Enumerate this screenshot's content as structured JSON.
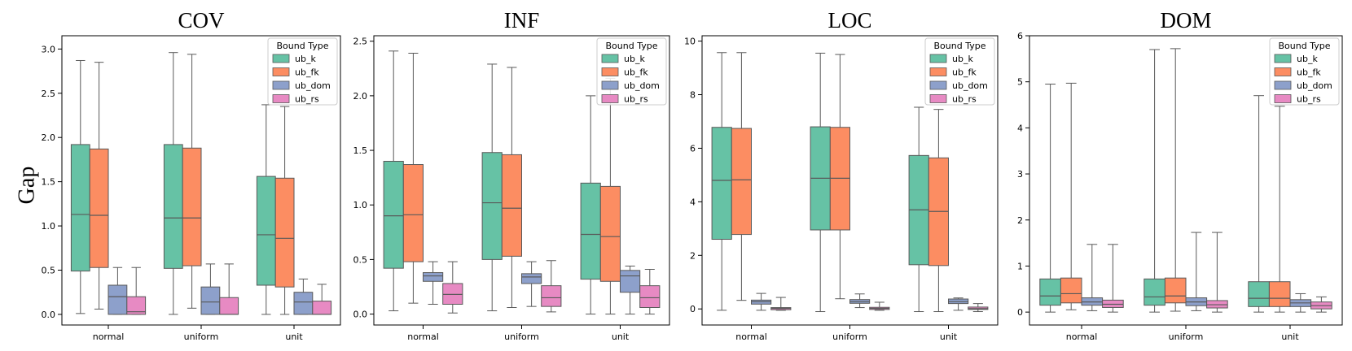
{
  "figure": {
    "ylabel": "Gap",
    "colors": {
      "ub_k": "#66c2a5",
      "ub_fk": "#fc8d62",
      "ub_dom": "#8da0cb",
      "ub_rs": "#e78ac3",
      "line": "#595959"
    }
  },
  "chart_data": [
    {
      "type": "box",
      "title": "COV",
      "legend_title": "Bound Type",
      "legend_loc": "top-right",
      "categories": [
        "normal",
        "uniform",
        "unit"
      ],
      "hue": [
        "ub_k",
        "ub_fk",
        "ub_dom",
        "ub_rs"
      ],
      "ylim": [
        -0.12,
        3.15
      ],
      "yticks": [
        0.0,
        0.5,
        1.0,
        1.5,
        2.0,
        2.5,
        3.0
      ],
      "ytick_labels": [
        "0.0",
        "0.5",
        "1.0",
        "1.5",
        "2.0",
        "2.5",
        "3.0"
      ],
      "boxes": [
        [
          [
            0.01,
            0.49,
            1.13,
            1.92,
            2.87
          ],
          [
            0.06,
            0.53,
            1.12,
            1.87,
            2.85
          ],
          [
            0.0,
            0.0,
            0.2,
            0.33,
            0.53
          ],
          [
            0.0,
            0.0,
            0.03,
            0.2,
            0.53
          ]
        ],
        [
          [
            0.0,
            0.52,
            1.09,
            1.92,
            2.96
          ],
          [
            0.07,
            0.55,
            1.09,
            1.88,
            2.94
          ],
          [
            0.0,
            0.0,
            0.14,
            0.31,
            0.57
          ],
          [
            0.0,
            0.0,
            0.0,
            0.19,
            0.57
          ]
        ],
        [
          [
            0.0,
            0.33,
            0.9,
            1.56,
            2.37
          ],
          [
            0.0,
            0.31,
            0.86,
            1.54,
            2.35
          ],
          [
            0.0,
            0.0,
            0.14,
            0.25,
            0.4
          ],
          [
            0.0,
            0.0,
            0.0,
            0.15,
            0.34
          ]
        ]
      ]
    },
    {
      "type": "box",
      "title": "INF",
      "legend_title": "Bound Type",
      "legend_loc": "top-right",
      "categories": [
        "normal",
        "uniform",
        "unit"
      ],
      "hue": [
        "ub_k",
        "ub_fk",
        "ub_dom",
        "ub_rs"
      ],
      "ylim": [
        -0.1,
        2.55
      ],
      "yticks": [
        0.0,
        0.5,
        1.0,
        1.5,
        2.0,
        2.5
      ],
      "ytick_labels": [
        "0.0",
        "0.5",
        "1.0",
        "1.5",
        "2.0",
        "2.5"
      ],
      "boxes": [
        [
          [
            0.03,
            0.42,
            0.9,
            1.4,
            2.41
          ],
          [
            0.1,
            0.48,
            0.91,
            1.37,
            2.39
          ],
          [
            0.09,
            0.3,
            0.35,
            0.38,
            0.48
          ],
          [
            0.01,
            0.09,
            0.18,
            0.28,
            0.48
          ]
        ],
        [
          [
            0.03,
            0.5,
            1.02,
            1.48,
            2.29
          ],
          [
            0.06,
            0.53,
            0.97,
            1.46,
            2.26
          ],
          [
            0.07,
            0.28,
            0.34,
            0.37,
            0.48
          ],
          [
            0.02,
            0.07,
            0.15,
            0.26,
            0.49
          ]
        ],
        [
          [
            0.0,
            0.32,
            0.73,
            1.2,
            2.0
          ],
          [
            0.0,
            0.3,
            0.71,
            1.17,
            2.16
          ],
          [
            0.0,
            0.2,
            0.35,
            0.4,
            0.44
          ],
          [
            0.0,
            0.06,
            0.15,
            0.26,
            0.41
          ]
        ]
      ]
    },
    {
      "type": "box",
      "title": "LOC",
      "legend_title": "Bound Type",
      "legend_loc": "top-right",
      "categories": [
        "normal",
        "uniform",
        "unit"
      ],
      "hue": [
        "ub_k",
        "ub_fk",
        "ub_dom",
        "ub_rs"
      ],
      "ylim": [
        -0.6,
        10.2
      ],
      "yticks": [
        0,
        2,
        4,
        6,
        8,
        10
      ],
      "ytick_labels": [
        "0",
        "2",
        "4",
        "6",
        "8",
        "10"
      ],
      "boxes": [
        [
          [
            -0.05,
            2.6,
            4.8,
            6.78,
            9.57
          ],
          [
            0.32,
            2.78,
            4.82,
            6.74,
            9.57
          ],
          [
            -0.05,
            0.18,
            0.27,
            0.33,
            0.58
          ],
          [
            -0.05,
            -0.03,
            0.02,
            0.05,
            0.43
          ]
        ],
        [
          [
            -0.1,
            2.95,
            4.88,
            6.8,
            9.55
          ],
          [
            0.38,
            2.95,
            4.88,
            6.78,
            9.5
          ],
          [
            0.05,
            0.21,
            0.27,
            0.35,
            0.56
          ],
          [
            -0.05,
            -0.02,
            0.02,
            0.06,
            0.25
          ]
        ],
        [
          [
            -0.1,
            1.65,
            3.7,
            5.73,
            7.53
          ],
          [
            -0.1,
            1.62,
            3.64,
            5.64,
            7.45
          ],
          [
            -0.05,
            0.2,
            0.27,
            0.37,
            0.41
          ],
          [
            -0.1,
            -0.02,
            0.01,
            0.07,
            0.2
          ]
        ]
      ]
    },
    {
      "type": "box",
      "title": "DOM",
      "legend_title": "Bound Type",
      "legend_loc": "top-right",
      "categories": [
        "normal",
        "uniform",
        "unit"
      ],
      "hue": [
        "ub_k",
        "ub_fk",
        "ub_dom",
        "ub_rs"
      ],
      "ylim": [
        -0.28,
        6.0
      ],
      "yticks": [
        0,
        1,
        2,
        3,
        4,
        5,
        6
      ],
      "ytick_labels": [
        "0",
        "1",
        "2",
        "3",
        "4",
        "5",
        "6"
      ],
      "boxes": [
        [
          [
            0.0,
            0.15,
            0.35,
            0.72,
            4.95
          ],
          [
            0.05,
            0.2,
            0.4,
            0.74,
            4.97
          ],
          [
            0.03,
            0.15,
            0.22,
            0.31,
            1.47
          ],
          [
            0.0,
            0.1,
            0.17,
            0.26,
            1.47
          ]
        ],
        [
          [
            0.0,
            0.15,
            0.33,
            0.72,
            5.7
          ],
          [
            0.02,
            0.2,
            0.35,
            0.74,
            5.72
          ],
          [
            0.03,
            0.14,
            0.22,
            0.31,
            1.73
          ],
          [
            0.0,
            0.09,
            0.16,
            0.25,
            1.73
          ]
        ],
        [
          [
            0.0,
            0.12,
            0.3,
            0.66,
            4.7
          ],
          [
            0.0,
            0.12,
            0.3,
            0.66,
            4.47
          ],
          [
            0.0,
            0.12,
            0.2,
            0.27,
            0.4
          ],
          [
            0.0,
            0.07,
            0.14,
            0.22,
            0.33
          ]
        ]
      ]
    }
  ]
}
